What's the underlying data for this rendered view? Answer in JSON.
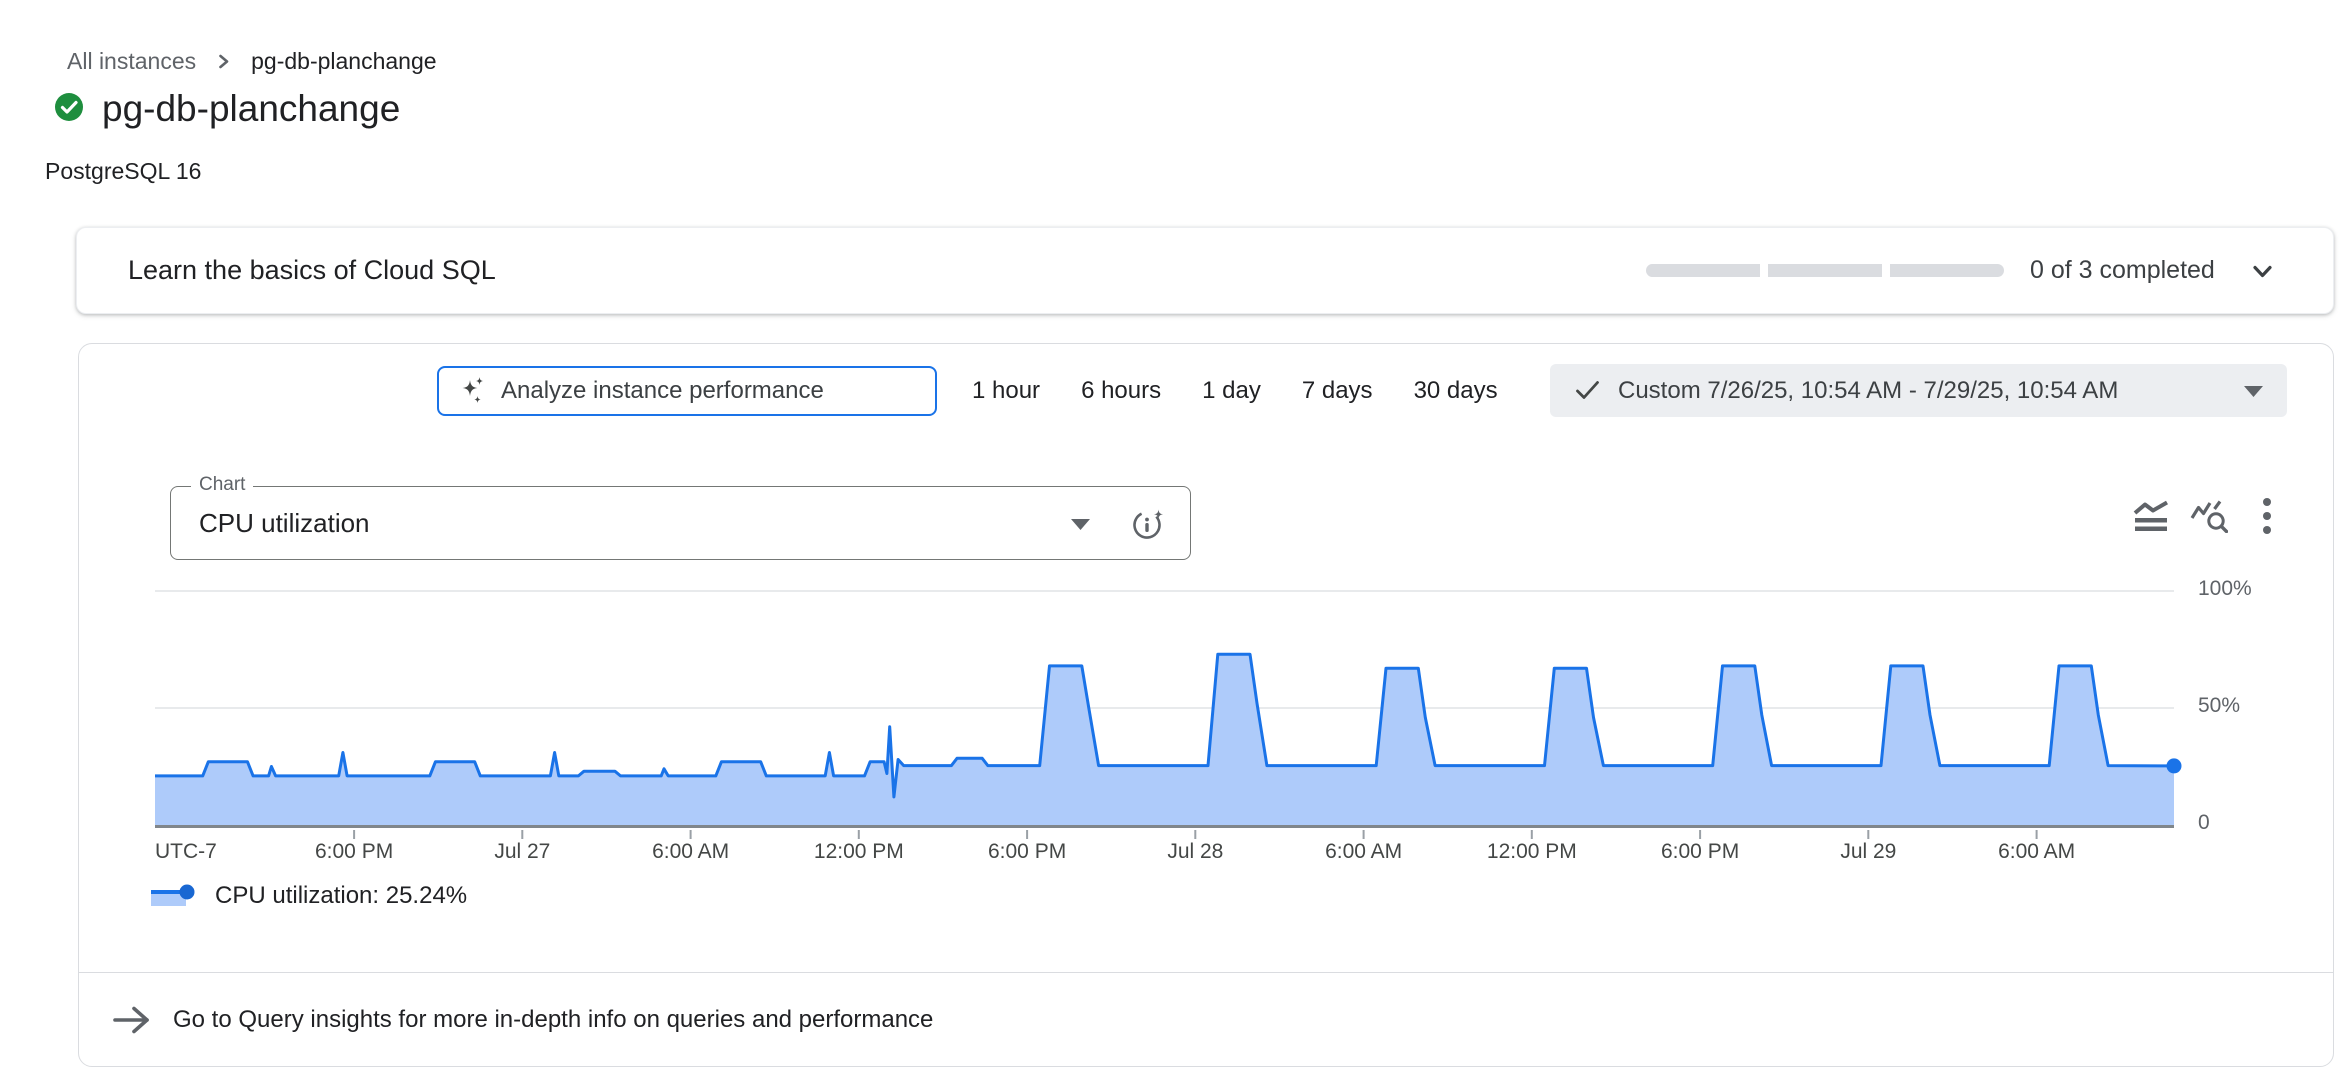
{
  "breadcrumb": {
    "items": [
      {
        "label": "All instances"
      },
      {
        "label": "pg-db-planchange"
      }
    ]
  },
  "header": {
    "title": "pg-db-planchange",
    "status_icon": "check-circle-green",
    "subtitle": "PostgreSQL 16"
  },
  "learn_card": {
    "title": "Learn the basics of Cloud SQL",
    "progress": {
      "segments": 3,
      "completed": 0
    },
    "status_label": "0 of 3 completed",
    "chevron_icon": "chevron-down"
  },
  "toolbar": {
    "analyze_button": {
      "label": "Analyze instance performance",
      "icon": "gemini-sparkle"
    },
    "time_ranges": [
      "1 hour",
      "6 hours",
      "1 day",
      "7 days",
      "30 days"
    ],
    "custom_range": {
      "selected": true,
      "check_icon": "check",
      "label": "Custom 7/26/25, 10:54 AM - 7/29/25, 10:54 AM",
      "dropdown_icon": "caret-down"
    }
  },
  "chart_controls": {
    "select_label": "Chart",
    "selected_value": "CPU utilization",
    "caret_icon": "caret-down",
    "insight_icon": "info-sparkle",
    "right_icons": [
      "area-chart",
      "query-stats",
      "more-vert"
    ]
  },
  "chart_data": {
    "type": "area",
    "title": "CPU utilization",
    "xlabel": "time (UTC-7), 7/26/25 10:54 AM to 7/29/25 10:54 AM",
    "ylabel": "CPU utilization (%)",
    "ylim": [
      0,
      100
    ],
    "grid": true,
    "legend_position": "bottom-left",
    "t_domain": [
      0,
      72
    ],
    "y_ticks": [
      {
        "label": "100%",
        "value": 100
      },
      {
        "label": "50%",
        "value": 50
      },
      {
        "label": "0",
        "value": 0
      }
    ],
    "x_ticks": [
      {
        "label": "UTC-7",
        "t": 0,
        "tick": false
      },
      {
        "label": "6:00 PM",
        "t": 7.1
      },
      {
        "label": "Jul 27",
        "t": 13.1
      },
      {
        "label": "6:00 AM",
        "t": 19.1
      },
      {
        "label": "12:00 PM",
        "t": 25.1
      },
      {
        "label": "6:00 PM",
        "t": 31.1
      },
      {
        "label": "Jul 28",
        "t": 37.1
      },
      {
        "label": "6:00 AM",
        "t": 43.1
      },
      {
        "label": "12:00 PM",
        "t": 49.1
      },
      {
        "label": "6:00 PM",
        "t": 55.1
      },
      {
        "label": "Jul 29",
        "t": 61.1
      },
      {
        "label": "6:00 AM",
        "t": 67.1
      }
    ],
    "series": [
      {
        "name": "CPU utilization",
        "current_value": "25.24%",
        "color": "#1a73e8",
        "fill": "#aecbfa",
        "points": [
          [
            0,
            21
          ],
          [
            1.7,
            21
          ],
          [
            1.9,
            27
          ],
          [
            3.3,
            27
          ],
          [
            3.5,
            21
          ],
          [
            4.05,
            21
          ],
          [
            4.15,
            25
          ],
          [
            4.3,
            21
          ],
          [
            6.55,
            21
          ],
          [
            6.7,
            31
          ],
          [
            6.85,
            21
          ],
          [
            9.8,
            21
          ],
          [
            10.0,
            27
          ],
          [
            11.4,
            27
          ],
          [
            11.6,
            21
          ],
          [
            14.1,
            21
          ],
          [
            14.25,
            31
          ],
          [
            14.4,
            21
          ],
          [
            15.1,
            21
          ],
          [
            15.3,
            23
          ],
          [
            16.4,
            23
          ],
          [
            16.6,
            21
          ],
          [
            18.05,
            21
          ],
          [
            18.15,
            24
          ],
          [
            18.3,
            21
          ],
          [
            20.0,
            21
          ],
          [
            20.2,
            27
          ],
          [
            21.6,
            27
          ],
          [
            21.8,
            21
          ],
          [
            23.9,
            21
          ],
          [
            24.05,
            31
          ],
          [
            24.2,
            21
          ],
          [
            25.3,
            21
          ],
          [
            25.5,
            27
          ],
          [
            26.0,
            27
          ],
          [
            26.1,
            22
          ],
          [
            26.2,
            42
          ],
          [
            26.35,
            12
          ],
          [
            26.5,
            28
          ],
          [
            26.7,
            25.4
          ],
          [
            28.4,
            25.4
          ],
          [
            28.6,
            28.5
          ],
          [
            29.5,
            28.5
          ],
          [
            29.7,
            25.4
          ],
          [
            31.55,
            25.4
          ],
          [
            31.9,
            68
          ],
          [
            33.05,
            68
          ],
          [
            33.3,
            50
          ],
          [
            33.65,
            25.4
          ],
          [
            37.55,
            25.4
          ],
          [
            37.9,
            73
          ],
          [
            39.05,
            73
          ],
          [
            39.3,
            52
          ],
          [
            39.65,
            25.4
          ],
          [
            43.55,
            25.4
          ],
          [
            43.9,
            67
          ],
          [
            45.05,
            67
          ],
          [
            45.3,
            46
          ],
          [
            45.65,
            25.4
          ],
          [
            49.55,
            25.4
          ],
          [
            49.9,
            67
          ],
          [
            51.05,
            67
          ],
          [
            51.3,
            46
          ],
          [
            51.65,
            25.4
          ],
          [
            55.55,
            25.4
          ],
          [
            55.9,
            68
          ],
          [
            57.05,
            68
          ],
          [
            57.3,
            47
          ],
          [
            57.65,
            25.4
          ],
          [
            61.55,
            25.4
          ],
          [
            61.9,
            68
          ],
          [
            63.05,
            68
          ],
          [
            63.3,
            47
          ],
          [
            63.65,
            25.4
          ],
          [
            67.55,
            25.4
          ],
          [
            67.9,
            68
          ],
          [
            69.05,
            68
          ],
          [
            69.3,
            47
          ],
          [
            69.65,
            25.4
          ],
          [
            72,
            25.24
          ]
        ]
      }
    ],
    "end_marker": {
      "t": 72,
      "value": 25.24
    }
  },
  "legend": {
    "label": "CPU utilization: 25.24%",
    "swatch": "blue-area-with-dot"
  },
  "footer_link": {
    "icon": "arrow-right",
    "label": "Go to Query insights for more in-depth info on queries and performance"
  },
  "colors": {
    "accent_blue": "#1a73e8",
    "area_fill": "#aecbfa",
    "status_green": "#1e8e3e",
    "chip_background": "#eceef1",
    "card_border": "#dadce0",
    "text_primary": "#202124",
    "text_secondary": "#5f6368"
  }
}
